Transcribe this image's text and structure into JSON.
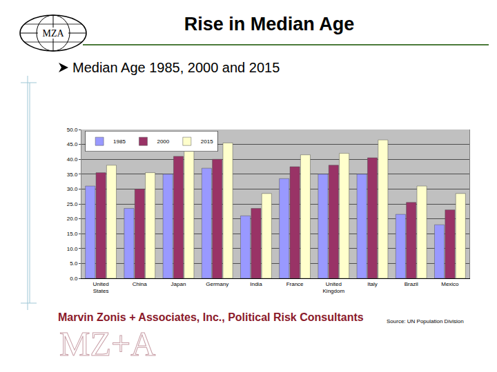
{
  "chart_data": {
    "type": "bar",
    "title": "Rise in Median Age",
    "subtitle": "Median Age 1985, 2000 and 2015",
    "annotations": [
      "MZA",
      "Marvin Zonis + Associates, Inc., Political Risk Consultants",
      "Source: UN Population Division",
      "MZ+A"
    ],
    "categories": [
      "United States",
      "China",
      "Japan",
      "Germany",
      "India",
      "France",
      "United Kingdom",
      "Italy",
      "Brazil",
      "Mexico"
    ],
    "series": [
      {
        "name": "1985",
        "color": "#9999ff",
        "values": [
          31.0,
          23.5,
          35.0,
          37.0,
          21.0,
          33.5,
          35.0,
          35.0,
          21.5,
          18.0
        ]
      },
      {
        "name": "2000",
        "color": "#993366",
        "values": [
          35.5,
          30.0,
          41.0,
          40.0,
          23.5,
          37.5,
          38.0,
          40.5,
          25.5,
          23.0
        ]
      },
      {
        "name": "2015",
        "color": "#ffffcc",
        "values": [
          38.0,
          35.5,
          45.0,
          45.5,
          28.5,
          41.5,
          42.0,
          46.5,
          31.0,
          28.5
        ]
      }
    ],
    "ylim": [
      0,
      50
    ],
    "yticks": [
      {
        "value": 0,
        "label": "0.0"
      },
      {
        "value": 5,
        "label": "5.0"
      },
      {
        "value": 10,
        "label": "10.0"
      },
      {
        "value": 15,
        "label": "15.0"
      },
      {
        "value": 20,
        "label": "20.0"
      },
      {
        "value": 25,
        "label": "25.0"
      },
      {
        "value": 30,
        "label": "30.0"
      },
      {
        "value": 35,
        "label": "35.0"
      },
      {
        "value": 40,
        "label": "40.0"
      },
      {
        "value": 45,
        "label": "45.0"
      },
      {
        "value": 50,
        "label": "50.0"
      }
    ],
    "grid": true,
    "legend": "top left"
  }
}
